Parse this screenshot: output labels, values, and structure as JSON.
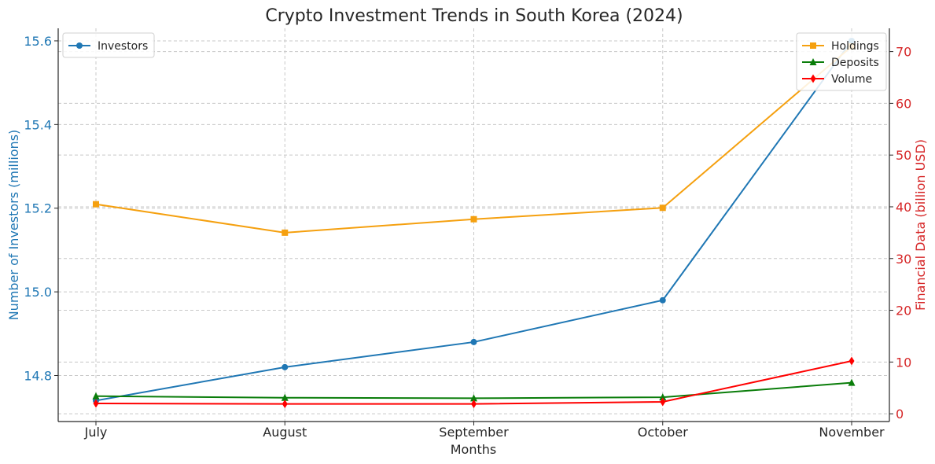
{
  "chart_data": {
    "type": "line",
    "title": "Crypto Investment Trends in South Korea (2024)",
    "xlabel": "Months",
    "categories": [
      "July",
      "August",
      "September",
      "October",
      "November"
    ],
    "left_axis": {
      "label": "Number of Investors (millions)",
      "color": "#1f77b4",
      "ylim": [
        14.69,
        15.63
      ],
      "ticks": [
        14.8,
        15.0,
        15.2,
        15.4,
        15.6
      ]
    },
    "right_axis": {
      "label": "Financial Data (billion USD)",
      "color": "#d62728",
      "ylim": [
        -1.5,
        74.5
      ],
      "ticks": [
        0,
        10,
        20,
        30,
        40,
        50,
        60,
        70
      ]
    },
    "series": [
      {
        "name": "Investors",
        "axis": "left",
        "color": "#1f77b4",
        "marker": "circle",
        "values": [
          14.74,
          14.82,
          14.88,
          14.98,
          15.6
        ]
      },
      {
        "name": "Holdings",
        "axis": "right",
        "color": "#f5a00f",
        "marker": "square",
        "values": [
          40.5,
          35.0,
          37.6,
          39.8,
          71.0
        ]
      },
      {
        "name": "Deposits",
        "axis": "right",
        "color": "#0a7d0a",
        "marker": "triangle",
        "values": [
          3.4,
          3.1,
          3.0,
          3.2,
          6.0
        ]
      },
      {
        "name": "Volume",
        "axis": "right",
        "color": "#ff0000",
        "marker": "diamond",
        "values": [
          2.0,
          1.9,
          1.9,
          2.3,
          10.2
        ]
      }
    ],
    "grid": true,
    "legend_left_placement": "top-left",
    "legend_right_placement": "top-right"
  }
}
